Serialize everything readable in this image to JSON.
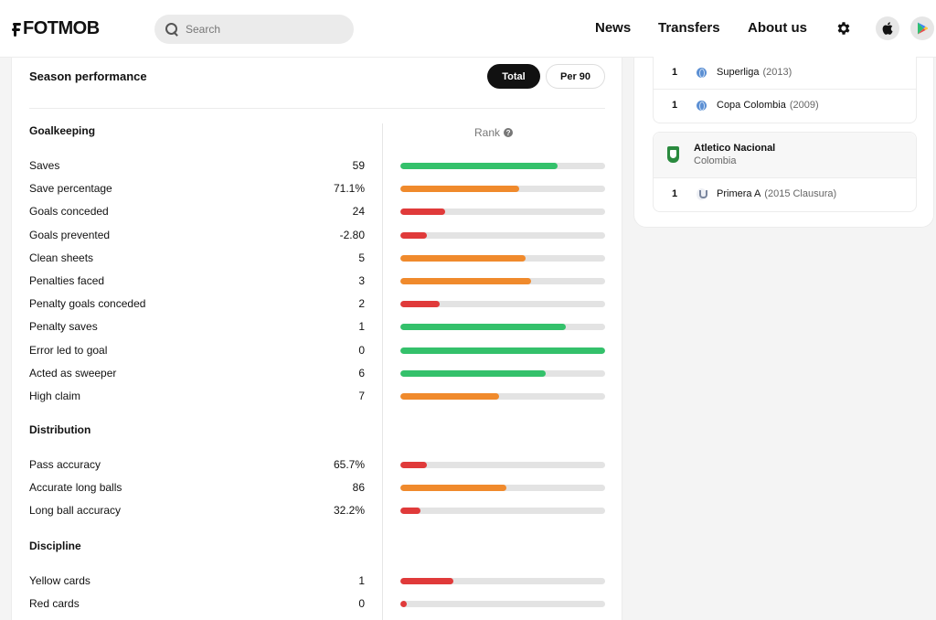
{
  "header": {
    "logo_text": "FOTMOB",
    "search_placeholder": "Search",
    "nav": [
      "News",
      "Transfers",
      "About us"
    ]
  },
  "colors": {
    "green": "#34c16b",
    "orange": "#f08a2c",
    "red": "#e03a3a",
    "track": "#e3e3e3"
  },
  "season": {
    "title": "Season performance",
    "toggle": {
      "total": "Total",
      "per90": "Per 90",
      "active": "total"
    },
    "rank_label": "Rank",
    "sections": [
      {
        "title": "Goalkeeping",
        "stats": [
          {
            "label": "Saves",
            "value": "59",
            "rank_pct": 77,
            "color": "green"
          },
          {
            "label": "Save percentage",
            "value": "71.1%",
            "rank_pct": 58,
            "color": "orange"
          },
          {
            "label": "Goals conceded",
            "value": "24",
            "rank_pct": 22,
            "color": "red"
          },
          {
            "label": "Goals prevented",
            "value": "-2.80",
            "rank_pct": 13,
            "color": "red"
          },
          {
            "label": "Clean sheets",
            "value": "5",
            "rank_pct": 61,
            "color": "orange"
          },
          {
            "label": "Penalties faced",
            "value": "3",
            "rank_pct": 64,
            "color": "orange"
          },
          {
            "label": "Penalty goals conceded",
            "value": "2",
            "rank_pct": 19,
            "color": "red"
          },
          {
            "label": "Penalty saves",
            "value": "1",
            "rank_pct": 81,
            "color": "green"
          },
          {
            "label": "Error led to goal",
            "value": "0",
            "rank_pct": 100,
            "color": "green"
          },
          {
            "label": "Acted as sweeper",
            "value": "6",
            "rank_pct": 71,
            "color": "green"
          },
          {
            "label": "High claim",
            "value": "7",
            "rank_pct": 48,
            "color": "orange"
          }
        ]
      },
      {
        "title": "Distribution",
        "stats": [
          {
            "label": "Pass accuracy",
            "value": "65.7%",
            "rank_pct": 13,
            "color": "red"
          },
          {
            "label": "Accurate long balls",
            "value": "86",
            "rank_pct": 52,
            "color": "orange"
          },
          {
            "label": "Long ball accuracy",
            "value": "32.2%",
            "rank_pct": 10,
            "color": "red"
          }
        ]
      },
      {
        "title": "Discipline",
        "stats": [
          {
            "label": "Yellow cards",
            "value": "1",
            "rank_pct": 26,
            "color": "red"
          },
          {
            "label": "Red cards",
            "value": "0",
            "rank_pct": 3,
            "color": "red"
          }
        ]
      }
    ]
  },
  "trophies": {
    "top_rows": [
      {
        "count": "1",
        "name": "Superliga",
        "season": "(2013)"
      },
      {
        "count": "1",
        "name": "Copa Colombia",
        "season": "(2009)"
      }
    ],
    "team": {
      "name": "Atletico Nacional",
      "country": "Colombia",
      "rows": [
        {
          "count": "1",
          "name": "Primera A",
          "season": "(2015 Clausura)"
        }
      ]
    }
  }
}
